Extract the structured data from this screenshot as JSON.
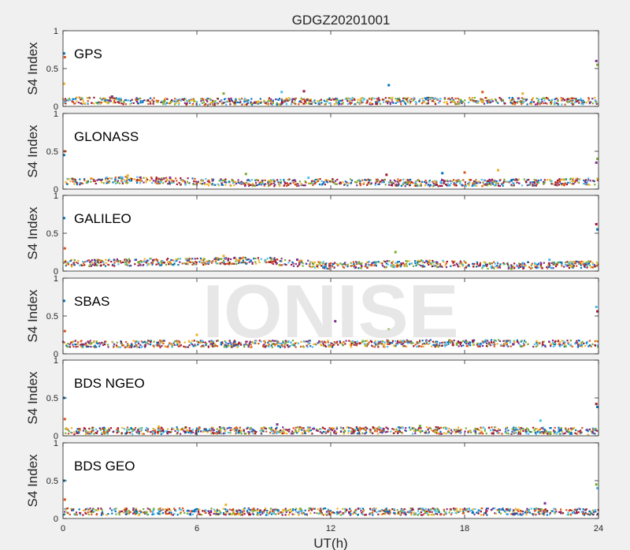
{
  "figure": {
    "title": "GDGZ20201001",
    "xlabel": "UT(h)",
    "watermark": "IONISE",
    "colors": {
      "background": "#f0f0f0",
      "axes_bg": "#ffffff",
      "axis": "#262626",
      "watermark": "#e3e3e3"
    }
  },
  "chart_data": {
    "type": "scatter",
    "title": "GDGZ20201001",
    "xlabel": "UT(h)",
    "xlim": [
      0,
      24
    ],
    "xticks": [
      0,
      6,
      12,
      18,
      24
    ],
    "ylim": [
      0,
      1
    ],
    "yticks": [
      0,
      0.5,
      1
    ],
    "grid": false,
    "series_colors": [
      "#0072bd",
      "#d95319",
      "#edb120",
      "#7e2f8e",
      "#77ac30",
      "#4dbeee",
      "#a2142f"
    ],
    "panels": [
      {
        "name": "GPS",
        "ylabel": "S4 Index",
        "baseline": [
          [
            0,
            0.08
          ],
          [
            6,
            0.06
          ],
          [
            12,
            0.07
          ],
          [
            18,
            0.07
          ],
          [
            24,
            0.07
          ]
        ],
        "points": [
          {
            "x": 0.05,
            "y": 0.7
          },
          {
            "x": 0.08,
            "y": 0.65
          },
          {
            "x": 0.05,
            "y": 0.3
          },
          {
            "x": 2.2,
            "y": 0.13
          },
          {
            "x": 7.2,
            "y": 0.17
          },
          {
            "x": 9.8,
            "y": 0.19
          },
          {
            "x": 10.8,
            "y": 0.2
          },
          {
            "x": 14.6,
            "y": 0.28
          },
          {
            "x": 18.8,
            "y": 0.19
          },
          {
            "x": 20.6,
            "y": 0.17
          },
          {
            "x": 23.9,
            "y": 0.6
          },
          {
            "x": 23.95,
            "y": 0.55
          }
        ]
      },
      {
        "name": "GLONASS",
        "ylabel": "S4 Index",
        "baseline": [
          [
            0,
            0.1
          ],
          [
            3,
            0.12
          ],
          [
            8,
            0.08
          ],
          [
            12,
            0.09
          ],
          [
            18,
            0.08
          ],
          [
            24,
            0.1
          ]
        ],
        "points": [
          {
            "x": 0.05,
            "y": 0.45
          },
          {
            "x": 0.08,
            "y": 0.5
          },
          {
            "x": 2.9,
            "y": 0.18
          },
          {
            "x": 4.8,
            "y": 0.15
          },
          {
            "x": 8.2,
            "y": 0.2
          },
          {
            "x": 11.0,
            "y": 0.15
          },
          {
            "x": 14.5,
            "y": 0.19
          },
          {
            "x": 17.0,
            "y": 0.21
          },
          {
            "x": 18.0,
            "y": 0.22
          },
          {
            "x": 19.5,
            "y": 0.25
          },
          {
            "x": 23.9,
            "y": 0.35
          },
          {
            "x": 23.95,
            "y": 0.4
          }
        ]
      },
      {
        "name": "GALILEO",
        "ylabel": "S4 Index",
        "baseline": [
          [
            0,
            0.1
          ],
          [
            4,
            0.12
          ],
          [
            9,
            0.14
          ],
          [
            12,
            0.07
          ],
          [
            16,
            0.1
          ],
          [
            20,
            0.07
          ],
          [
            24,
            0.09
          ]
        ],
        "points": [
          {
            "x": 0.05,
            "y": 0.7
          },
          {
            "x": 0.08,
            "y": 0.3
          },
          {
            "x": 7.2,
            "y": 0.2
          },
          {
            "x": 10.5,
            "y": 0.15
          },
          {
            "x": 14.9,
            "y": 0.25
          },
          {
            "x": 21.8,
            "y": 0.15
          },
          {
            "x": 23.9,
            "y": 0.62
          },
          {
            "x": 23.95,
            "y": 0.55
          }
        ]
      },
      {
        "name": "SBAS",
        "ylabel": "S4 Index",
        "baseline": [
          [
            0,
            0.13
          ],
          [
            6,
            0.13
          ],
          [
            12,
            0.13
          ],
          [
            18,
            0.14
          ],
          [
            24,
            0.13
          ]
        ],
        "points": [
          {
            "x": 0.05,
            "y": 0.7
          },
          {
            "x": 0.08,
            "y": 0.3
          },
          {
            "x": 6.0,
            "y": 0.25
          },
          {
            "x": 12.2,
            "y": 0.43
          },
          {
            "x": 14.6,
            "y": 0.32
          },
          {
            "x": 23.9,
            "y": 0.62
          },
          {
            "x": 23.95,
            "y": 0.56
          }
        ]
      },
      {
        "name": "BDS NGEO",
        "ylabel": "S4 Index",
        "baseline": [
          [
            0,
            0.06
          ],
          [
            6,
            0.07
          ],
          [
            12,
            0.07
          ],
          [
            18,
            0.07
          ],
          [
            24,
            0.06
          ]
        ],
        "points": [
          {
            "x": 0.05,
            "y": 0.5
          },
          {
            "x": 0.08,
            "y": 0.22
          },
          {
            "x": 4.3,
            "y": 0.12
          },
          {
            "x": 9.6,
            "y": 0.15
          },
          {
            "x": 16.0,
            "y": 0.13
          },
          {
            "x": 21.4,
            "y": 0.2
          },
          {
            "x": 23.9,
            "y": 0.42
          },
          {
            "x": 23.95,
            "y": 0.38
          }
        ]
      },
      {
        "name": "BDS GEO",
        "ylabel": "S4 Index",
        "baseline": [
          [
            0,
            0.09
          ],
          [
            6,
            0.09
          ],
          [
            12,
            0.09
          ],
          [
            18,
            0.09
          ],
          [
            24,
            0.09
          ]
        ],
        "points": [
          {
            "x": 0.05,
            "y": 0.5
          },
          {
            "x": 0.08,
            "y": 0.25
          },
          {
            "x": 7.3,
            "y": 0.18
          },
          {
            "x": 21.6,
            "y": 0.2
          },
          {
            "x": 23.9,
            "y": 0.45
          },
          {
            "x": 23.95,
            "y": 0.4
          }
        ]
      }
    ]
  }
}
